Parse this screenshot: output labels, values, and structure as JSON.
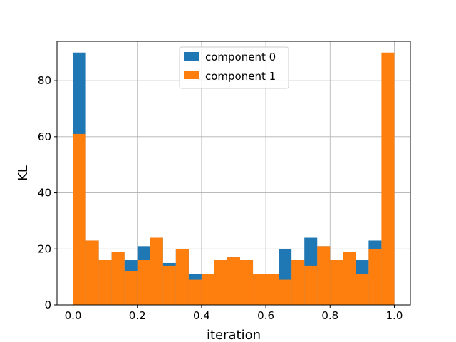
{
  "chart_data": {
    "type": "bar",
    "subtype": "overlaid-histogram",
    "title": "",
    "xlabel": "iteration",
    "ylabel": "KL",
    "xlim": [
      -0.05,
      1.05
    ],
    "ylim": [
      0,
      94
    ],
    "xticks": [
      "0.0",
      "0.2",
      "0.4",
      "0.6",
      "0.8",
      "1.0"
    ],
    "yticks": [
      "0",
      "20",
      "40",
      "60",
      "80"
    ],
    "grid": true,
    "legend_position": "top-center",
    "bin_edges": [
      0.0,
      0.04,
      0.08,
      0.12,
      0.16,
      0.2,
      0.24,
      0.28,
      0.32,
      0.36,
      0.4,
      0.44,
      0.48,
      0.52,
      0.56,
      0.6,
      0.64,
      0.68,
      0.72,
      0.76,
      0.8,
      0.84,
      0.88,
      0.92,
      0.96,
      1.0
    ],
    "series": [
      {
        "name": "component 0",
        "color": "#1f77b4",
        "values": [
          90,
          23,
          16,
          19,
          16,
          21,
          24,
          15,
          20,
          11,
          11,
          16,
          17,
          16,
          11,
          11,
          20,
          16,
          24,
          21,
          16,
          19,
          16,
          23,
          20
        ]
      },
      {
        "name": "component 1",
        "color": "#ff7f0e",
        "values": [
          61,
          23,
          16,
          19,
          12,
          16,
          24,
          14,
          20,
          9,
          11,
          16,
          17,
          16,
          11,
          11,
          9,
          16,
          14,
          21,
          16,
          19,
          11,
          20,
          90
        ]
      }
    ]
  }
}
